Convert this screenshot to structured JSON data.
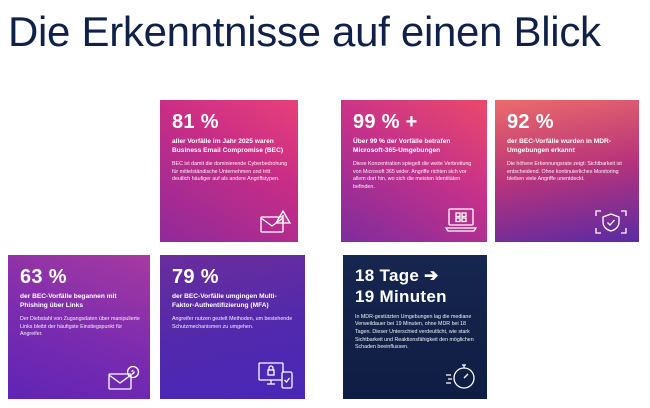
{
  "page": {
    "title": "Die Erkenntnisse auf einen Blick"
  },
  "cards": [
    {
      "stat": "81 %",
      "headline": "aller Vorfälle im Jahr 2025 waren Business Email Compromise (BEC)",
      "body": "BEC ist damit die dominierende Cyberbedrohung für mittelständische Unternehmen und tritt deutlich häufiger auf als andere Angriffstypen.",
      "icon": "envelope-warning-icon"
    },
    {
      "stat": "99 % +",
      "headline": "Über 99 % der Vorfälle betrafen Microsoft-365-Umgebungen",
      "body": "Diese Konzentration spiegelt die weite Verbreitung von Microsoft 365 wider. Angriffe richten sich vor allem dort hin, wo sich die meisten Identitäten befinden.",
      "icon": "laptop-windows-icon"
    },
    {
      "stat": "92 %",
      "headline": "der BEC-Vorfälle wurden in MDR-Umgebungen erkannt",
      "body": "Die höhere Erkennungsrate zeigt: Sichtbarkeit ist entscheidend. Ohne kontinuierliches Monitoring bleiben viele Angriffe unentdeckt.",
      "icon": "shield-check-icon"
    },
    {
      "stat": "63 %",
      "headline": "der BEC-Vorfälle begannen mit Phishing über Links",
      "body": "Der Diebstahl von Zugangsdaten über manipulierte Links bleibt der häufigste Einstiegspunkt für Angreifer.",
      "icon": "envelope-link-icon"
    },
    {
      "stat": "79 %",
      "headline": "der BEC-Vorfälle umgingen Multi-Faktor-Authentifizierung (MFA)",
      "body": "Angreifer nutzen gezielt Methoden, um bestehende Schutzmechanismen zu umgehen.",
      "icon": "monitor-phone-lock-icon"
    },
    {
      "stat_line1": "18 Tage ➔",
      "stat_line2": "19 Minuten",
      "body": "In MDR-gestützten Umgebungen lag die mediane Verweildauer bei 19 Minuten, ohne MDR bei 18 Tagen. Dieser Unterschied verdeutlicht, wie stark Sichtbarkeit und Reaktionsfähigkeit den möglichen Schaden beeinflussen.",
      "icon": "stopwatch-icon"
    }
  ]
}
